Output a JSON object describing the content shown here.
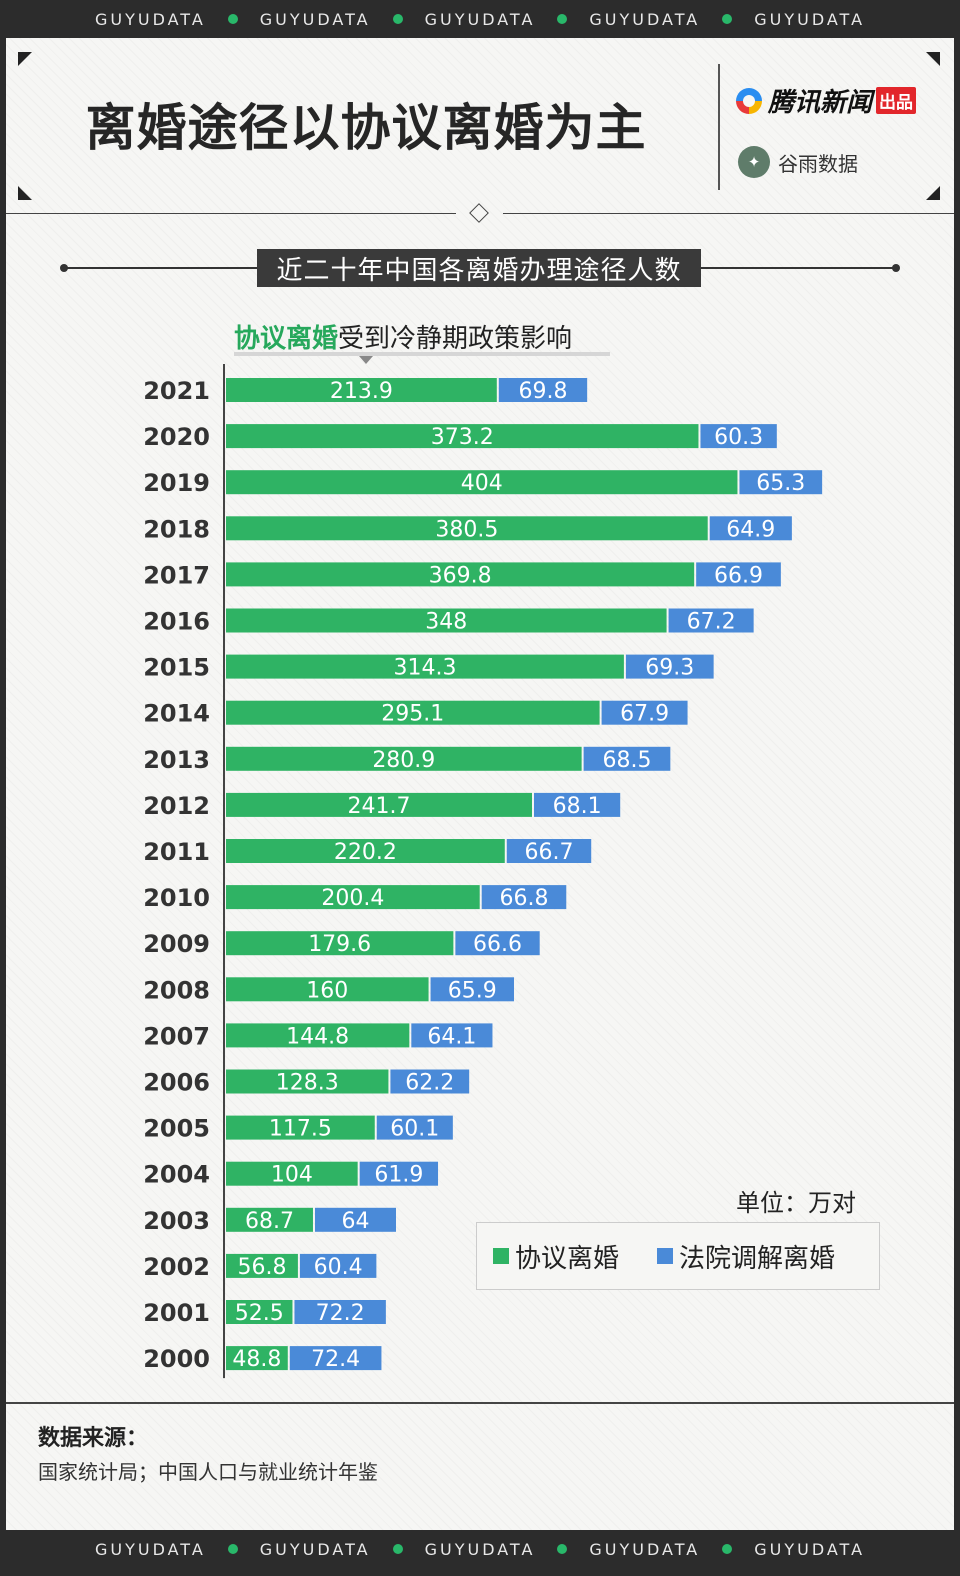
{
  "brand_strip": {
    "text": "GUYUDATA"
  },
  "title": "离婚途径以协议离婚为主",
  "brands": {
    "primary": "腾讯新闻",
    "primary_badge": "出品",
    "secondary": "谷雨数据"
  },
  "subtitle": "近二十年中国各离婚办理途径人数",
  "annotation": {
    "highlight": "协议离婚",
    "rest": "受到冷静期政策影响"
  },
  "unit": "单位：万对",
  "source": {
    "label": "数据来源：",
    "text": "国家统计局；中国人口与就业统计年鉴"
  },
  "colors": {
    "green": "#2fb364",
    "blue": "#4a8ad8",
    "background": "#f6f6f4",
    "dark": "#2c2c2c"
  },
  "chart_data": {
    "type": "bar",
    "orientation": "horizontal",
    "stacked": true,
    "categories": [
      "2021",
      "2020",
      "2019",
      "2018",
      "2017",
      "2016",
      "2015",
      "2014",
      "2013",
      "2012",
      "2011",
      "2010",
      "2009",
      "2008",
      "2007",
      "2006",
      "2005",
      "2004",
      "2003",
      "2002",
      "2001",
      "2000"
    ],
    "series": [
      {
        "name": "协议离婚",
        "color": "#2fb364",
        "values": [
          213.9,
          373.2,
          404,
          380.5,
          369.8,
          348,
          314.3,
          295.1,
          280.9,
          241.7,
          220.2,
          200.4,
          179.6,
          160,
          144.8,
          128.3,
          117.5,
          104,
          68.7,
          56.8,
          52.5,
          48.8
        ]
      },
      {
        "name": "法院调解离婚",
        "color": "#4a8ad8",
        "values": [
          69.8,
          60.3,
          65.3,
          64.9,
          66.9,
          67.2,
          69.3,
          67.9,
          68.5,
          68.1,
          66.7,
          66.8,
          66.6,
          65.9,
          64.1,
          62.2,
          60.1,
          61.9,
          64,
          60.4,
          72.2,
          72.4
        ]
      }
    ],
    "title": "近二十年中国各离婚办理途径人数",
    "unit": "万对",
    "legend_position": "bottom-right",
    "grid": false
  }
}
